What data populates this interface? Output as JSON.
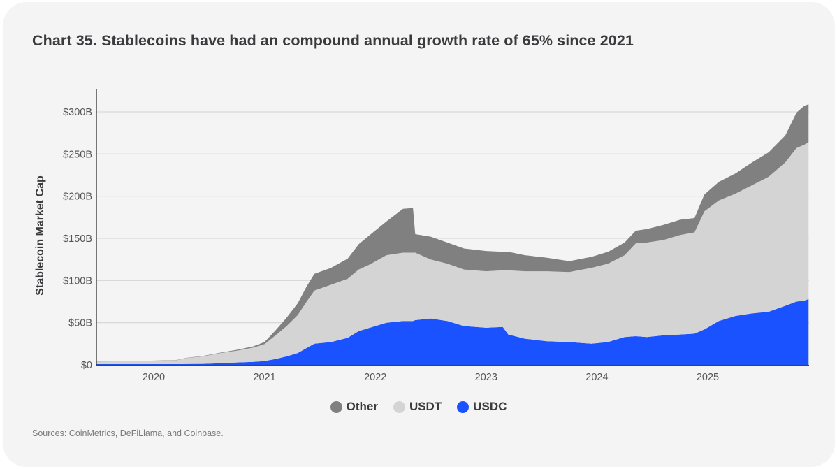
{
  "chart_data": {
    "type": "area",
    "stacked": true,
    "title": "Chart 35. Stablecoins have had an compound annual growth rate of 65% since 2021",
    "xlabel": "",
    "ylabel": "Stablecoin Market Cap",
    "xlim": [
      2019.48,
      2025.91
    ],
    "ylim": [
      0,
      325
    ],
    "y_unit": "USD billions",
    "yticks": [
      0,
      50,
      100,
      150,
      200,
      250,
      300
    ],
    "ytick_labels": [
      "$0",
      "$50B",
      "$100B",
      "$150B",
      "$200B",
      "$250B",
      "$300B"
    ],
    "xticks": [
      2020,
      2021,
      2022,
      2023,
      2024,
      2025
    ],
    "xtick_labels": [
      "2020",
      "2021",
      "2022",
      "2023",
      "2024",
      "2025"
    ],
    "grid": "horizontal",
    "legend_position": "bottom-center",
    "x": [
      2019.48,
      2019.9,
      2020.2,
      2020.3,
      2020.45,
      2020.6,
      2020.75,
      2020.9,
      2021.0,
      2021.1,
      2021.2,
      2021.3,
      2021.38,
      2021.45,
      2021.6,
      2021.75,
      2021.85,
      2021.95,
      2022.1,
      2022.25,
      2022.34,
      2022.36,
      2022.5,
      2022.65,
      2022.8,
      2023.0,
      2023.15,
      2023.2,
      2023.35,
      2023.55,
      2023.75,
      2023.95,
      2024.1,
      2024.25,
      2024.35,
      2024.45,
      2024.6,
      2024.75,
      2024.88,
      2024.97,
      2025.1,
      2025.25,
      2025.4,
      2025.55,
      2025.7,
      2025.8,
      2025.87,
      2025.91
    ],
    "series": [
      {
        "name": "USDC",
        "color": "#1a52ff",
        "values": [
          0.8,
          0.8,
          0.8,
          1.0,
          1.2,
          1.8,
          2.8,
          3.5,
          4.5,
          7,
          10,
          14,
          20,
          25,
          27,
          32,
          40,
          44,
          50,
          52,
          52,
          53,
          55,
          52,
          46,
          44,
          45,
          36,
          31,
          28,
          27,
          25,
          27,
          33,
          34,
          33,
          35,
          36,
          37,
          42,
          52,
          58,
          61,
          63,
          70,
          75,
          76,
          78
        ]
      },
      {
        "name": "USDT",
        "color": "#d4d4d4",
        "values": [
          3.2,
          3.7,
          4.5,
          7.0,
          9.0,
          12,
          14,
          17,
          20,
          28,
          36,
          45,
          55,
          63,
          68,
          70,
          73,
          75,
          80,
          81,
          81,
          80,
          70,
          68,
          67,
          67,
          67,
          76,
          80,
          83,
          83,
          90,
          93,
          97,
          110,
          112,
          113,
          118,
          120,
          140,
          143,
          145,
          152,
          160,
          170,
          182,
          185,
          186
        ]
      },
      {
        "name": "Other",
        "color": "#808080",
        "values": [
          0.2,
          0.2,
          0.3,
          0.4,
          0.5,
          0.6,
          1.0,
          1.5,
          2.5,
          6,
          10,
          14,
          18,
          20,
          20,
          24,
          30,
          35,
          40,
          52,
          53,
          22,
          27,
          25,
          25,
          24,
          22,
          22,
          19,
          16,
          13,
          13,
          14,
          15,
          15,
          16,
          18,
          18,
          17,
          20,
          22,
          24,
          27,
          29,
          32,
          42,
          46,
          45
        ]
      }
    ]
  },
  "legend": [
    {
      "label": "Other",
      "color": "#808080"
    },
    {
      "label": "USDT",
      "color": "#d4d4d4"
    },
    {
      "label": "USDC",
      "color": "#1a52ff"
    }
  ],
  "source": "Sources: CoinMetrics, DeFiLlama, and Coinbase."
}
